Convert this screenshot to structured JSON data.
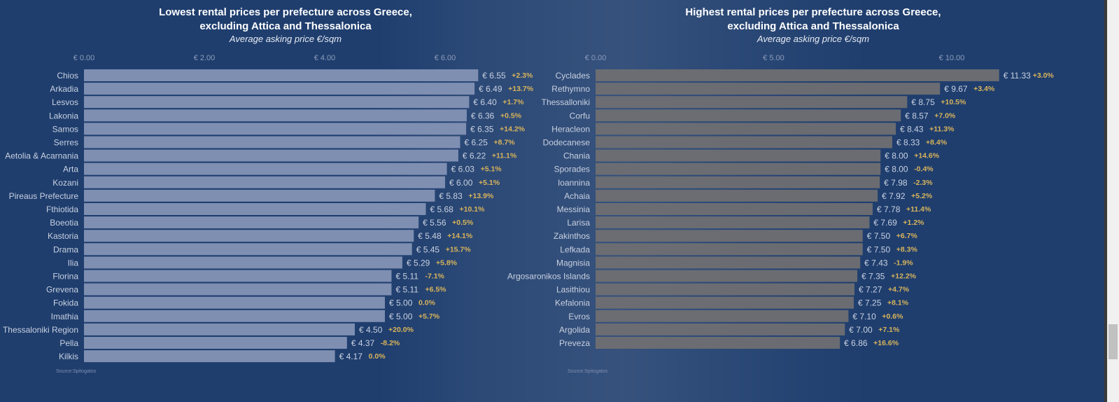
{
  "chart_data": [
    {
      "type": "bar",
      "orientation": "horizontal",
      "title_line1": "Lowest rental prices per prefecture across Greece,",
      "title_line2": "excluding Attica and Thessalonica",
      "subtitle": "Average asking price €/sqm",
      "xlim": [
        0,
        6.6
      ],
      "ticks": [
        {
          "v": 0,
          "label": "€ 0.00"
        },
        {
          "v": 2,
          "label": "€ 2.00"
        },
        {
          "v": 4,
          "label": "€ 4.00"
        },
        {
          "v": 6,
          "label": "€ 6.00"
        }
      ],
      "bar_color": "#8493b5",
      "categories": [
        "Chios",
        "Arkadia",
        "Lesvos",
        "Lakonia",
        "Samos",
        "Serres",
        "Aetolia & Acarnania",
        "Arta",
        "Kozani",
        "Pireaus Prefecture",
        "Fthiotida",
        "Boeotia",
        "Kastoria",
        "Drama",
        "Ilia",
        "Florina",
        "Grevena",
        "Fokida",
        "Imathia",
        "Thessaloniki Region",
        "Pella",
        "Kilkis"
      ],
      "values": [
        6.55,
        6.49,
        6.4,
        6.36,
        6.35,
        6.25,
        6.22,
        6.03,
        6.0,
        5.83,
        5.68,
        5.56,
        5.48,
        5.45,
        5.29,
        5.11,
        5.11,
        5.0,
        5.0,
        4.5,
        4.37,
        4.17
      ],
      "value_labels": [
        "€ 6.55",
        "€ 6.49",
        "€ 6.40",
        "€ 6.36",
        "€ 6.35",
        "€ 6.25",
        "€ 6.22",
        "€ 6.03",
        "€ 6.00",
        "€ 5.83",
        "€ 5.68",
        "€ 5.56",
        "€ 5.48",
        "€ 5.45",
        "€ 5.29",
        "€ 5.11",
        "€ 5.11",
        "€ 5.00",
        "€ 5.00",
        "€ 4.50",
        "€ 4.37",
        "€ 4.17"
      ],
      "changes": [
        "+2.3%",
        "+13.7%",
        "+1.7%",
        "+0.5%",
        "+14.2%",
        "+8.7%",
        "+11.1%",
        "+5.1%",
        "+5.1%",
        "+13.9%",
        "+10.1%",
        "+0.5%",
        "+14.1%",
        "+15.7%",
        "+5.8%",
        "-7.1%",
        "+6.5%",
        "0.0%",
        "+5.7%",
        "+20.0%",
        "-8.2%",
        "0.0%"
      ],
      "source": "Source:Spitogatos"
    },
    {
      "type": "bar",
      "orientation": "horizontal",
      "title_line1": "Highest rental prices per prefecture across Greece,",
      "title_line2": "excluding Attica and Thessalonica",
      "subtitle": "Average asking price €/sqm",
      "xlim": [
        0,
        11.5
      ],
      "ticks": [
        {
          "v": 0,
          "label": "€ 0.00"
        },
        {
          "v": 5,
          "label": "€ 5.00"
        },
        {
          "v": 10,
          "label": "€ 10.00"
        }
      ],
      "bar_color": "#6f6f72",
      "categories": [
        "Cyclades",
        "Rethymno",
        "Thessalloniki",
        "Corfu",
        "Heracleon",
        "Dodecanese",
        "Chania",
        "Sporades",
        "Ioannina",
        "Achaia",
        "Messinia",
        "Larisa",
        "Zakinthos",
        "Lefkada",
        "Magnisia",
        "Argosaronikos Islands",
        "Lasithiou",
        "Kefalonia",
        "Evros",
        "Argolida",
        "Preveza"
      ],
      "values": [
        11.33,
        9.67,
        8.75,
        8.57,
        8.43,
        8.33,
        8.0,
        8.0,
        7.98,
        7.92,
        7.78,
        7.69,
        7.5,
        7.5,
        7.43,
        7.35,
        7.27,
        7.25,
        7.1,
        7.0,
        6.86
      ],
      "value_labels": [
        "€ 11.33",
        "€ 9.67",
        "€ 8.75",
        "€ 8.57",
        "€ 8.43",
        "€ 8.33",
        "€ 8.00",
        "€ 8.00",
        "€ 7.98",
        "€ 7.92",
        "€ 7.78",
        "€ 7.69",
        "€ 7.50",
        "€ 7.50",
        "€ 7.43",
        "€ 7.35",
        "€ 7.27",
        "€ 7.25",
        "€ 7.10",
        "€ 7.00",
        "€ 6.86"
      ],
      "changes": [
        "+3.0%",
        "+3.4%",
        "+10.5%",
        "+7.0%",
        "+11.3%",
        "+8.4%",
        "+14.6%",
        "-0.4%",
        "-2.3%",
        "+5.2%",
        "+11.4%",
        "+1.2%",
        "+6.7%",
        "+8.3%",
        "-1.9%",
        "+12.2%",
        "+4.7%",
        "+8.1%",
        "+0.6%",
        "+7.1%",
        "+16.6%"
      ],
      "source": "Source:Spitogatos"
    }
  ],
  "colors": {
    "background": "#1f3e6e",
    "change_text": "#d9b45a",
    "label_text": "#c9d1e0"
  }
}
